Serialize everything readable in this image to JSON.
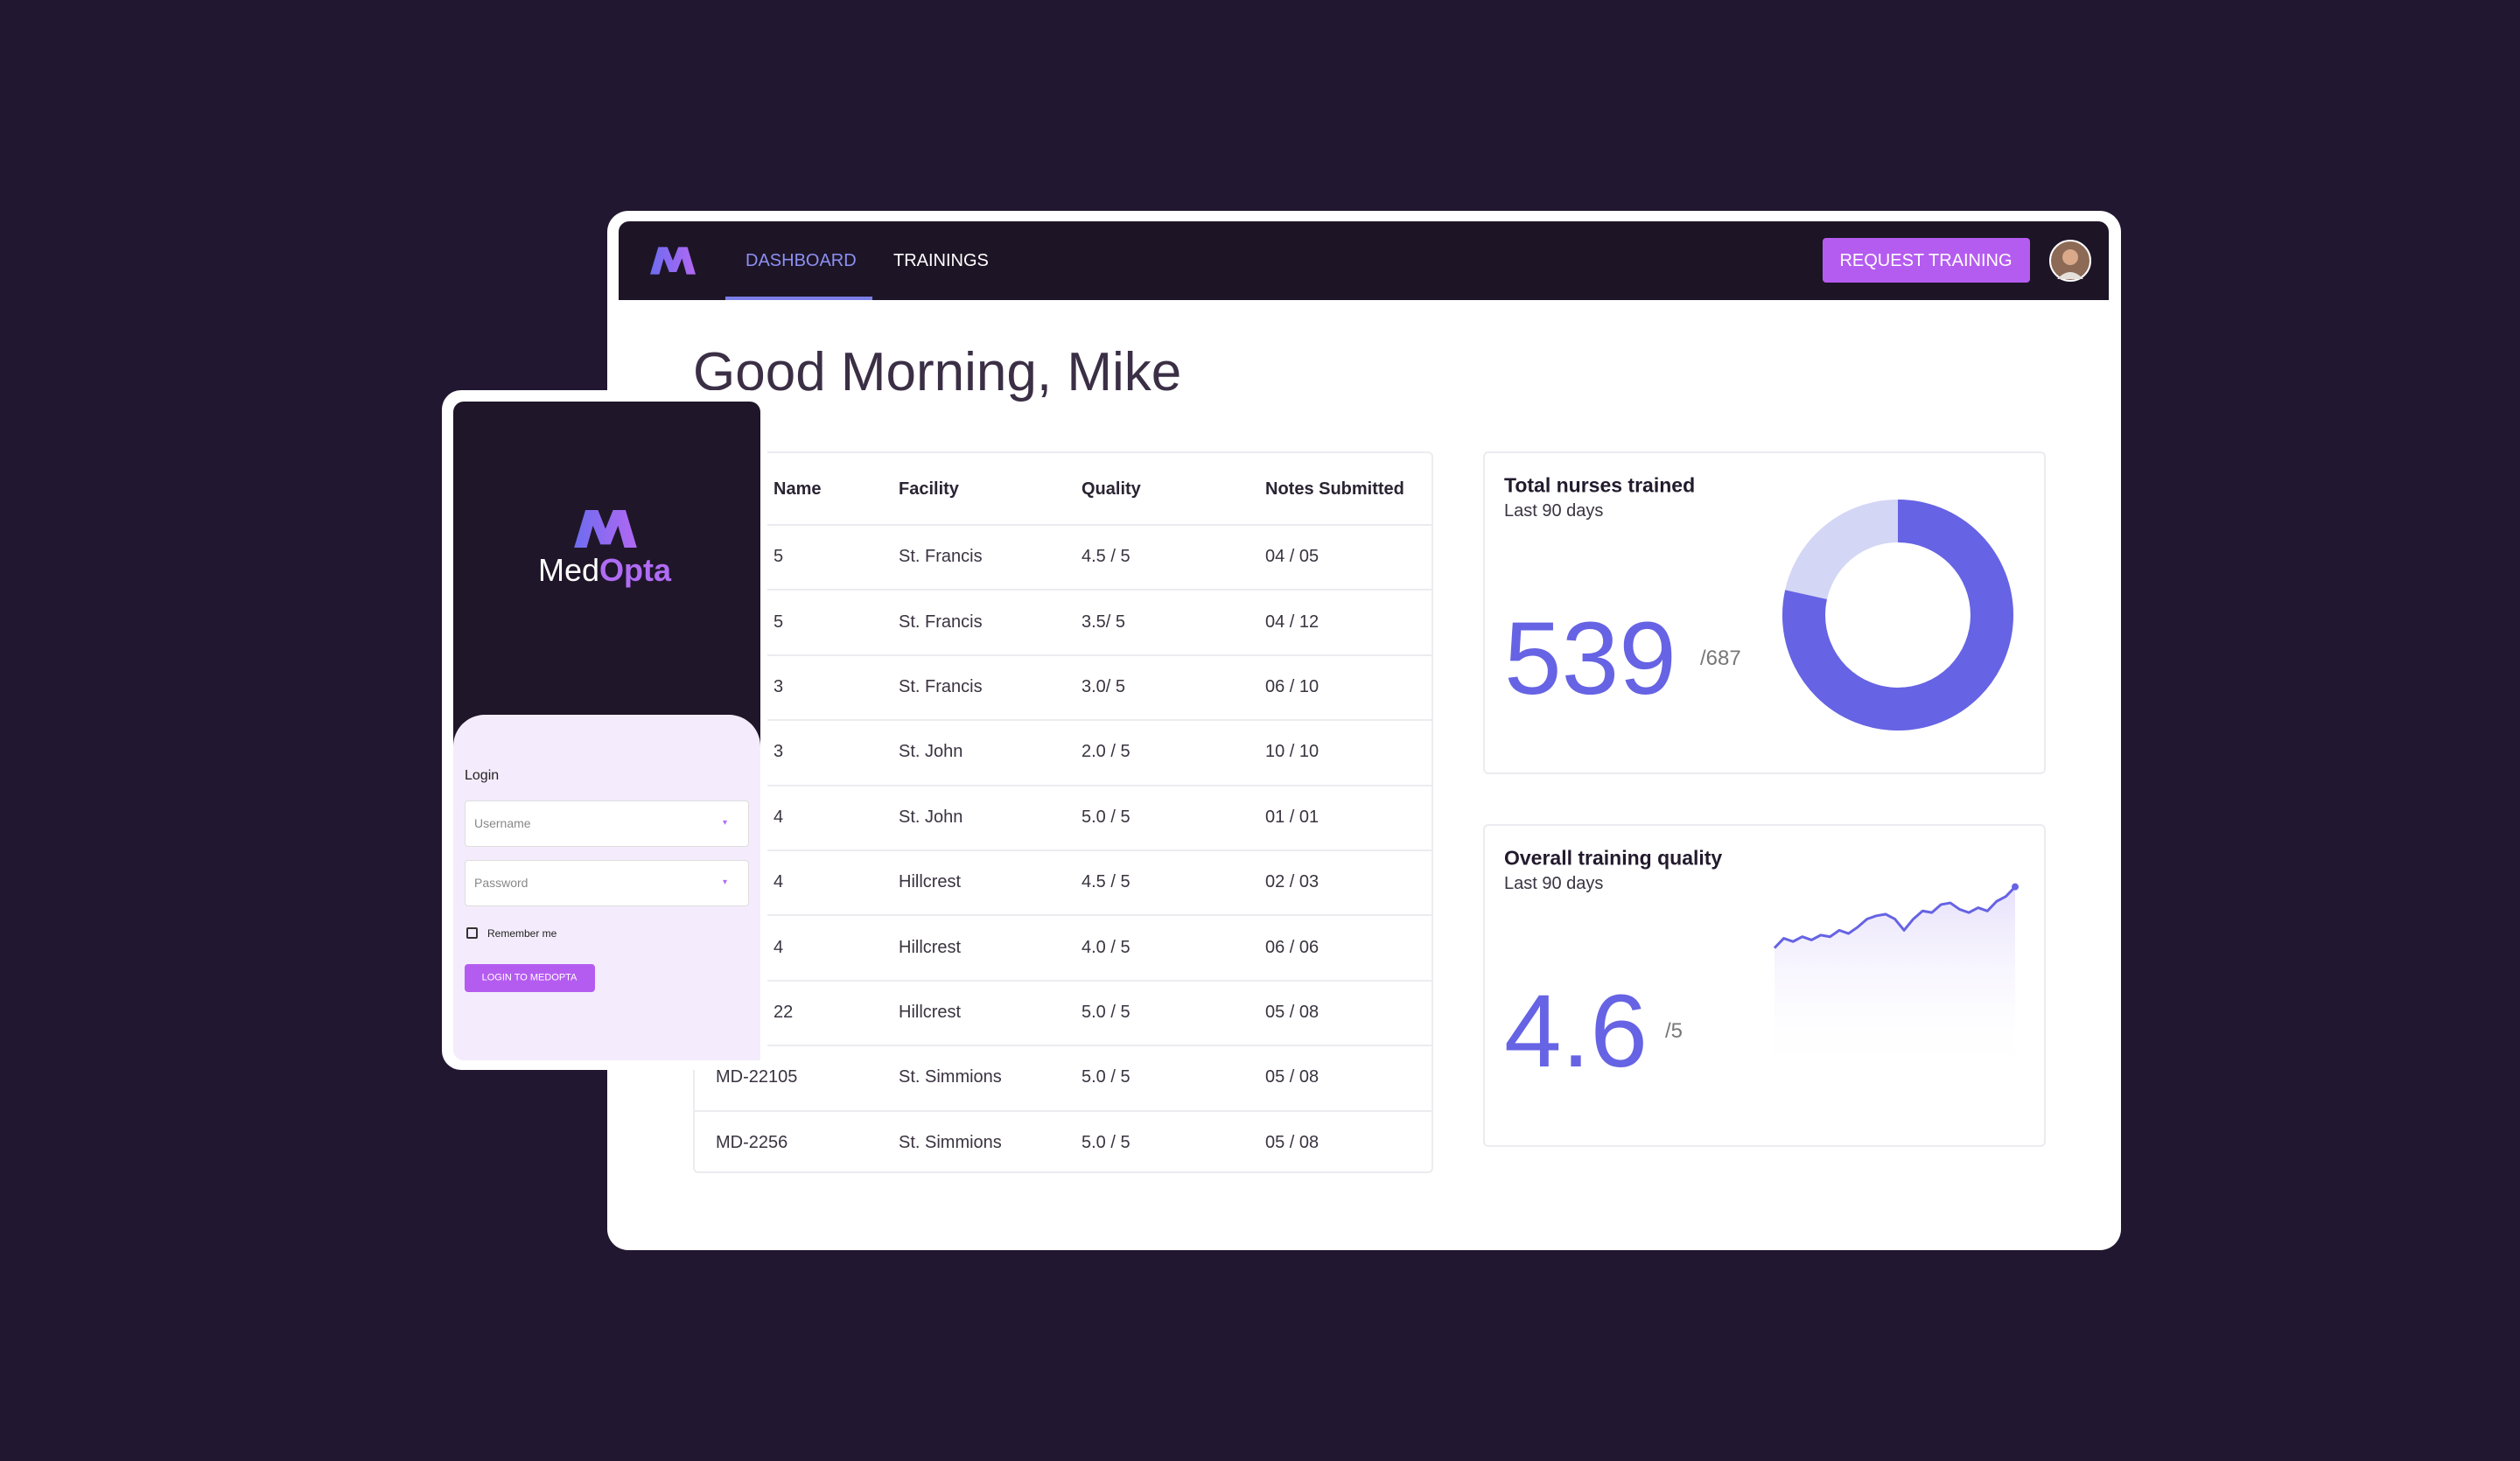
{
  "nav": {
    "items": [
      "DASHBOARD",
      "TRAININGS"
    ],
    "button": "REQUEST TRAINING"
  },
  "greeting": "Good Morning, Mike",
  "table": {
    "headers": [
      "Name",
      "Facility",
      "Quality",
      "Notes Submitted"
    ],
    "rows": [
      [
        "5",
        "St. Francis",
        "4.5 / 5",
        "04 / 05"
      ],
      [
        "5",
        "St. Francis",
        "3.5/ 5",
        "04 / 12"
      ],
      [
        "3",
        "St. Francis",
        "3.0/ 5",
        "06 / 10"
      ],
      [
        "3",
        "St. John",
        "2.0 / 5",
        "10 / 10"
      ],
      [
        "4",
        "St. John",
        "5.0 / 5",
        "01 / 01"
      ],
      [
        "4",
        "Hillcrest",
        "4.5 / 5",
        "02 / 03"
      ],
      [
        "4",
        "Hillcrest",
        "4.0 / 5",
        "06 / 06"
      ],
      [
        "22",
        "Hillcrest",
        "5.0 / 5",
        "05 / 08"
      ],
      [
        "MD-22105",
        "St. Simmions",
        "5.0 / 5",
        "05 / 08"
      ],
      [
        "MD-2256",
        "St. Simmions",
        "5.0 / 5",
        "05 / 08"
      ]
    ]
  },
  "cards": [
    {
      "title": "Total nurses trained",
      "subtitle": "Last 90 days",
      "value": 539,
      "total": {
        "value": 687,
        "label": "/687"
      },
      "color": "#6663e4",
      "rest_color": "#d4d6f6"
    },
    {
      "title": "Overall training quality",
      "subtitle": "Last 90 days",
      "value": 4.6,
      "total": {
        "value": 5,
        "label": "/5"
      },
      "color": "#6663e4",
      "sparkline": {
        "values": [
          10,
          16,
          14,
          17,
          15,
          18,
          17,
          21,
          19,
          23,
          28,
          30,
          31,
          28,
          21,
          28,
          33,
          32,
          37,
          38,
          34,
          32,
          35,
          33,
          39,
          42,
          48
        ],
        "ylim": [
          0,
          50
        ]
      }
    }
  ],
  "login": {
    "brand": {
      "first": "Med",
      "second": "Opta"
    },
    "title": "Login",
    "fields": [
      "Username",
      "Password"
    ],
    "remember": "Remember me",
    "button": "LOGIN TO MEDOPTA"
  }
}
